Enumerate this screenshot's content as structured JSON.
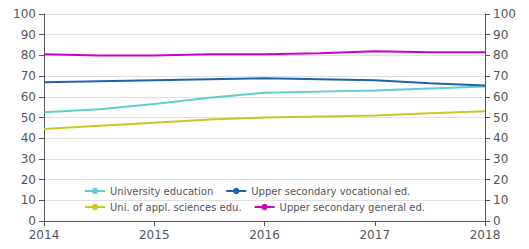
{
  "chart_data": {
    "type": "line",
    "x": [
      2014,
      2014.5,
      2015,
      2015.5,
      2016,
      2016.5,
      2017,
      2017.5,
      2018
    ],
    "series": [
      {
        "name": "University education",
        "color": "#5ecece",
        "values": [
          52.5,
          54.0,
          56.5,
          59.5,
          62.0,
          62.5,
          63.0,
          64.0,
          65.0
        ]
      },
      {
        "name": "Upper secondary vocational ed.",
        "color": "#2060b0",
        "values": [
          67.0,
          67.5,
          68.0,
          68.5,
          69.0,
          68.5,
          68.0,
          66.5,
          65.5
        ]
      },
      {
        "name": "Uni. of appl. sciences edu.",
        "color": "#c8c820",
        "values": [
          44.5,
          46.0,
          47.5,
          49.0,
          50.0,
          50.5,
          51.0,
          52.0,
          53.0
        ]
      },
      {
        "name": "Upper secondary general ed.",
        "color": "#cc00cc",
        "values": [
          80.5,
          80.0,
          80.0,
          80.5,
          80.5,
          81.0,
          82.0,
          81.5,
          81.5
        ]
      }
    ],
    "xlim": [
      2014,
      2018
    ],
    "xticks": [
      2014,
      2015,
      2016,
      2017,
      2018
    ],
    "ylim": [
      0,
      100
    ],
    "yticks": [
      0,
      10,
      20,
      30,
      40,
      50,
      60,
      70,
      80,
      90,
      100
    ],
    "y2lim": [
      0,
      100
    ],
    "y2ticks": [
      0,
      10,
      20,
      30,
      40,
      50,
      60,
      70,
      80,
      90,
      100
    ],
    "grid": true,
    "legend": "lower left"
  }
}
